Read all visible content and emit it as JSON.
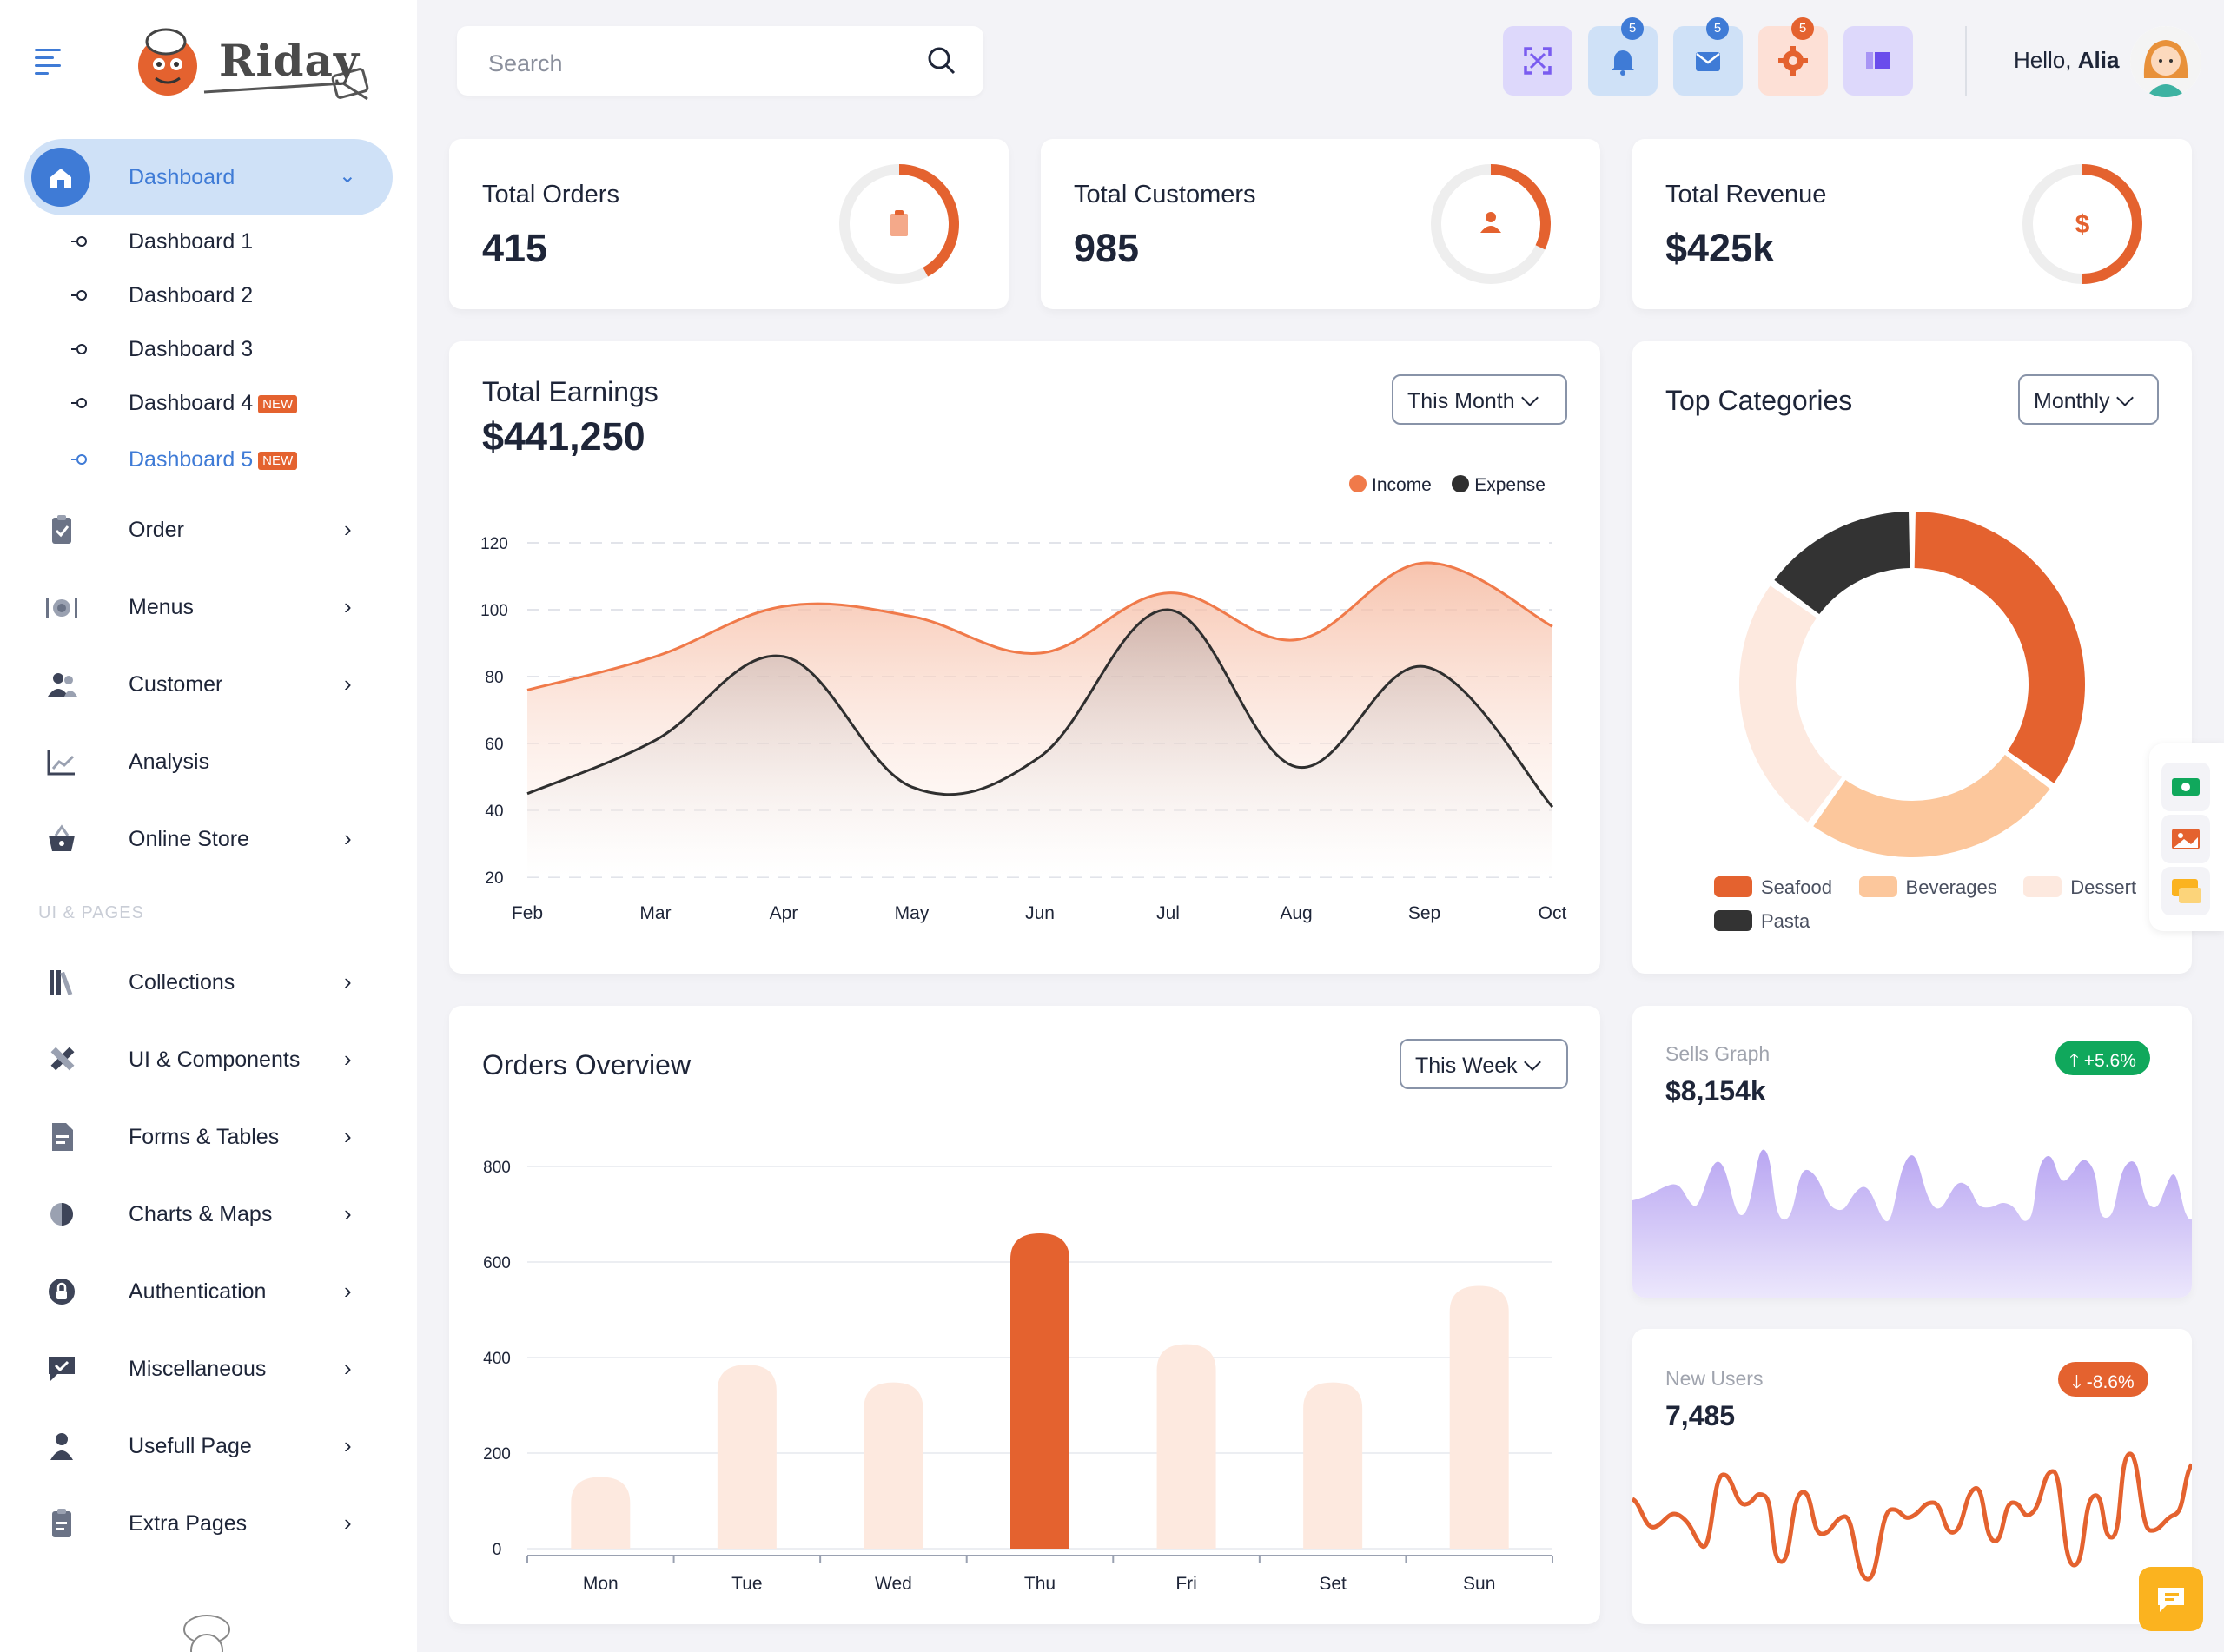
{
  "brand": {
    "name": "Riday"
  },
  "sidebar": {
    "dashboard": {
      "label": "Dashboard"
    },
    "submenu": [
      {
        "label": "Dashboard 1",
        "badge": ""
      },
      {
        "label": "Dashboard 2",
        "badge": ""
      },
      {
        "label": "Dashboard 3",
        "badge": ""
      },
      {
        "label": "Dashboard 4",
        "badge": "NEW"
      },
      {
        "label": "Dashboard 5",
        "badge": "NEW"
      }
    ],
    "items": [
      {
        "label": "Order"
      },
      {
        "label": "Menus"
      },
      {
        "label": "Customer"
      },
      {
        "label": "Analysis"
      },
      {
        "label": "Online Store"
      }
    ],
    "section_label": "UI & PAGES",
    "pages": [
      {
        "label": "Collections"
      },
      {
        "label": "UI & Components"
      },
      {
        "label": "Forms & Tables"
      },
      {
        "label": "Charts & Maps"
      },
      {
        "label": "Authentication"
      },
      {
        "label": "Miscellaneous"
      },
      {
        "label": "Usefull Page"
      },
      {
        "label": "Extra Pages"
      }
    ]
  },
  "topbar": {
    "search_placeholder": "Search",
    "notifications_count": "5",
    "messages_count": "5",
    "settings_count": "5",
    "greeting": "Hello,",
    "user_name": "Alia"
  },
  "stats": [
    {
      "label": "Total Orders",
      "value": "415",
      "progress": 0.42
    },
    {
      "label": "Total Customers",
      "value": "985",
      "progress": 0.32
    },
    {
      "label": "Total Revenue",
      "value": "$425k",
      "progress": 0.5,
      "icon_text": "$"
    }
  ],
  "earnings": {
    "title": "Total Earnings",
    "value": "$441,250",
    "period": "This Month"
  },
  "categories": {
    "title": "Top Categories",
    "period": "Monthly"
  },
  "orders_overview": {
    "title": "Orders Overview",
    "period": "This Week"
  },
  "sells_graph": {
    "label": "Sells Graph",
    "value": "$8,154k",
    "change": "+5.6%"
  },
  "new_users": {
    "label": "New Users",
    "value": "7,485",
    "change": "-8.6%"
  },
  "colors": {
    "primary": "#3f7bd6",
    "accent": "#e4622f",
    "income": "#f07a4a",
    "expense": "#2f2f2f",
    "success": "#10a85c",
    "purple": "#b9a6f2"
  },
  "chart_data": [
    {
      "type": "area",
      "title": "Total Earnings",
      "x": [
        "Feb",
        "Mar",
        "Apr",
        "May",
        "Jun",
        "Jul",
        "Aug",
        "Sep",
        "Oct"
      ],
      "series": [
        {
          "name": "Income",
          "values": [
            76,
            86,
            101,
            98,
            87,
            105,
            91,
            114,
            95
          ]
        },
        {
          "name": "Expense",
          "values": [
            45,
            61,
            86,
            47,
            56,
            100,
            53,
            83,
            41
          ]
        }
      ],
      "yticks": [
        120,
        100,
        80,
        60,
        40,
        20
      ],
      "ylim": [
        20,
        120
      ],
      "legend": "top-right"
    },
    {
      "type": "pie",
      "title": "Top Categories",
      "labels": [
        "Seafood",
        "Beverages",
        "Dessert",
        "Pasta"
      ],
      "values": [
        35,
        25,
        25,
        15
      ],
      "legend": "bottom"
    },
    {
      "type": "bar",
      "title": "Orders Overview",
      "categories": [
        "Mon",
        "Tue",
        "Wed",
        "Thu",
        "Fri",
        "Set",
        "Sun"
      ],
      "values": [
        150,
        385,
        348,
        660,
        428,
        348,
        550
      ],
      "highlight": "Thu",
      "yticks": [
        800,
        600,
        400,
        200,
        0
      ],
      "ylim": [
        0,
        800
      ]
    }
  ]
}
